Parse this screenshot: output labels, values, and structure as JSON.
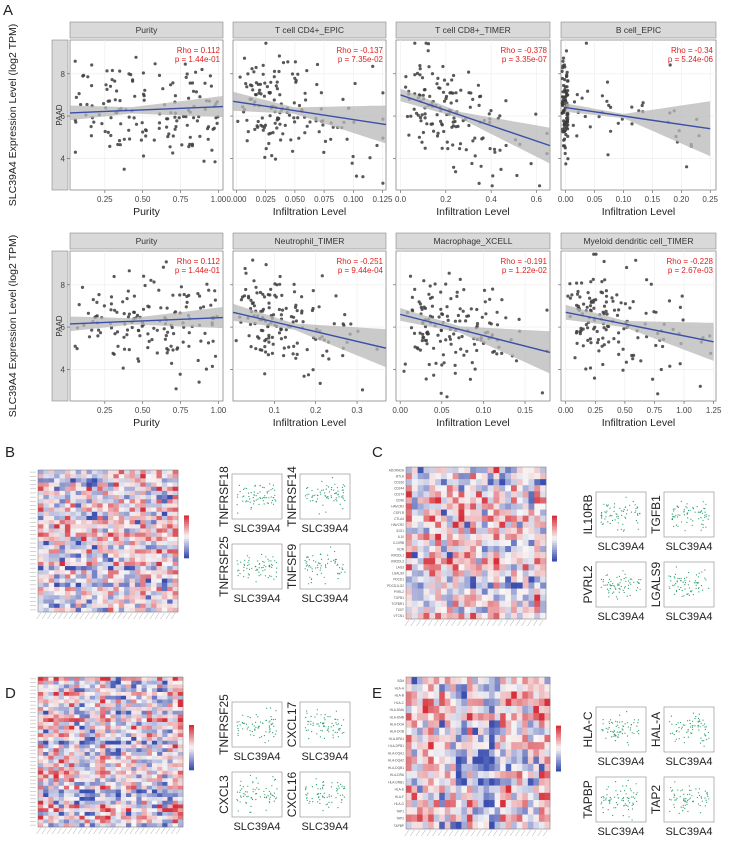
{
  "panel_labels": [
    "A",
    "B",
    "C",
    "D",
    "E"
  ],
  "chart_data": [
    {
      "type": "scatter",
      "row": 1,
      "gene": "SLC39A4",
      "ylabel": "SLC39A4 Expression Level (log2 TPM)",
      "strip_label": "PAAD",
      "yticks": [
        "4",
        "6",
        "8"
      ],
      "ylim": [
        2.5,
        9.6
      ],
      "panels": [
        {
          "title": "Purity",
          "xlabel": "Purity",
          "rho": "Rho = 0.112",
          "p": "p = 1.44e-01",
          "xticks": [
            "0.25",
            "0.50",
            "0.75",
            "1.00"
          ],
          "xtick_values": [
            0.25,
            0.5,
            0.75,
            1.0
          ],
          "xlim": [
            0.02,
            1.03
          ],
          "fit": {
            "x": [
              0.02,
              1.03
            ],
            "y": [
              6.15,
              6.45
            ]
          },
          "ci": [
            0.35,
            0.15,
            0.5
          ]
        },
        {
          "title": "T cell CD4+_EPIC",
          "xlabel": "Infiltration Level",
          "rho": "Rho = -0.137",
          "p": "p = 7.35e-02",
          "xticks": [
            "0.000",
            "0.025",
            "0.050",
            "0.075",
            "0.100",
            "0.125"
          ],
          "xtick_values": [
            0,
            0.025,
            0.05,
            0.075,
            0.1,
            0.125
          ],
          "xlim": [
            -0.003,
            0.128
          ],
          "fit": {
            "x": [
              -0.003,
              0.128
            ],
            "y": [
              6.7,
              5.6
            ]
          },
          "ci": [
            0.45,
            0.15,
            0.9
          ]
        },
        {
          "title": "T cell CD8+_TIMER",
          "xlabel": "Infiltration Level",
          "rho": "Rho = -0.378",
          "p": "p = 3.35e-07",
          "xticks": [
            "0.0",
            "0.2",
            "0.4",
            "0.6"
          ],
          "xtick_values": [
            0,
            0.2,
            0.4,
            0.6
          ],
          "xlim": [
            -0.02,
            0.66
          ],
          "fit": {
            "x": [
              0.0,
              0.66
            ],
            "y": [
              7.0,
              4.6
            ]
          },
          "ci": [
            0.3,
            0.15,
            0.85
          ]
        },
        {
          "title": "B cell_EPIC",
          "xlabel": "Infiltration Level",
          "rho": "Rho = -0.34",
          "p": "p = 5.24e-06",
          "xticks": [
            "0.00",
            "0.05",
            "0.10",
            "0.15",
            "0.20",
            "0.25"
          ],
          "xtick_values": [
            0,
            0.05,
            0.1,
            0.15,
            0.2,
            0.25
          ],
          "xlim": [
            -0.008,
            0.26
          ],
          "fit": {
            "x": [
              0.0,
              0.25
            ],
            "y": [
              6.4,
              5.4
            ]
          },
          "ci": [
            0.2,
            0.1,
            1.3
          ]
        }
      ]
    },
    {
      "type": "scatter",
      "row": 2,
      "gene": "SLC39A4",
      "ylabel": "SLC39A4 Expression Level (log2 TPM)",
      "strip_label": "PAAD",
      "yticks": [
        "4",
        "6",
        "8"
      ],
      "ylim": [
        2.5,
        9.6
      ],
      "panels": [
        {
          "title": "Purity",
          "xlabel": "Purity",
          "rho": "Rho = 0.112",
          "p": "p = 1.44e-01",
          "xticks": [
            "0.25",
            "0.50",
            "0.75",
            "1.00"
          ],
          "xtick_values": [
            0.25,
            0.5,
            0.75,
            1.0
          ],
          "xlim": [
            0.02,
            1.03
          ],
          "fit": {
            "x": [
              0.02,
              1.03
            ],
            "y": [
              6.15,
              6.45
            ]
          },
          "ci": [
            0.35,
            0.15,
            0.5
          ]
        },
        {
          "title": "Neutrophil_TIMER",
          "xlabel": "Infiltration Level",
          "rho": "Rho = -0.251",
          "p": "p = 9.44e-04",
          "xticks": [
            "0.1",
            "0.2",
            "0.3"
          ],
          "xtick_values": [
            0.1,
            0.2,
            0.3
          ],
          "xlim": [
            0.0,
            0.37
          ],
          "fit": {
            "x": [
              0.0,
              0.37
            ],
            "y": [
              6.7,
              5.0
            ]
          },
          "ci": [
            0.4,
            0.15,
            0.9
          ]
        },
        {
          "title": "Macrophage_XCELL",
          "xlabel": "Infiltration Level",
          "rho": "Rho = -0.191",
          "p": "p = 1.22e-02",
          "xticks": [
            "0.00",
            "0.05",
            "0.10",
            "0.15"
          ],
          "xtick_values": [
            0,
            0.05,
            0.1,
            0.15
          ],
          "xlim": [
            -0.005,
            0.18
          ],
          "fit": {
            "x": [
              0.0,
              0.18
            ],
            "y": [
              6.6,
              4.8
            ]
          },
          "ci": [
            0.3,
            0.15,
            1.0
          ]
        },
        {
          "title": "Myeloid dendritic cell_TIMER",
          "xlabel": "Infiltration Level",
          "rho": "Rho = -0.228",
          "p": "p = 2.67e-03",
          "xticks": [
            "0.00",
            "0.25",
            "0.50",
            "0.75",
            "1.00",
            "1.25"
          ],
          "xtick_values": [
            0,
            0.25,
            0.5,
            0.75,
            1.0,
            1.25
          ],
          "xlim": [
            -0.04,
            1.27
          ],
          "fit": {
            "x": [
              0.0,
              1.25
            ],
            "y": [
              6.7,
              5.3
            ]
          },
          "ci": [
            0.35,
            0.15,
            0.9
          ]
        }
      ]
    },
    {
      "type": "heatmap",
      "panel": "B",
      "note": "correlation heatmap (red = positive, blue = negative)",
      "mini_scatter_labels": {
        "ylabels": [
          "TNFRSF18",
          "TNFRSF14",
          "TNFRSF25",
          "TNFSF9"
        ],
        "xlabel": "SLC39A4"
      }
    },
    {
      "type": "heatmap",
      "panel": "C",
      "row_labels": [
        "ADORA2A",
        "BTLA",
        "CD160",
        "CD244",
        "CD274",
        "CD96",
        "HAVCR2",
        "CSF1R",
        "CTLA4",
        "HAVCR2",
        "IDO1",
        "IL10",
        "IL10RB",
        "KDR",
        "KIR2DL1",
        "KIR2DL3",
        "LAG3",
        "LGALS9",
        "PDCD1",
        "PDCD1LG2",
        "PVRL2",
        "TGFB1",
        "TGFBR1",
        "TIGIT",
        "VTCN1"
      ],
      "mini_scatter_labels": {
        "ylabels": [
          "IL10RB",
          "TGFB1",
          "PVRL2",
          "LGALS9"
        ],
        "xlabel": "SLC39A4"
      }
    },
    {
      "type": "heatmap",
      "panel": "D",
      "mini_scatter_labels": {
        "ylabels": [
          "TNFRSF25",
          "CXCL17",
          "CXCL3",
          "CXCL16"
        ],
        "xlabel": "SLC39A4"
      }
    },
    {
      "type": "heatmap",
      "panel": "E",
      "row_labels": [
        "B2M",
        "HLA-A",
        "HLA-B",
        "HLA-C",
        "HLA-DMA",
        "HLA-DMB",
        "HLA-DOA",
        "HLA-DOB",
        "HLA-DPA1",
        "HLA-DPB1",
        "HLA-DQA1",
        "HLA-DQA2",
        "HLA-DQB1",
        "HLA-DRA",
        "HLA-DRB1",
        "HLA-E",
        "HLA-F",
        "HLA-G",
        "TAP1",
        "TAP2",
        "TAPBP"
      ],
      "mini_scatter_labels": {
        "ylabels": [
          "HLA-C",
          "HAL-A",
          "TAPBP",
          "TAP2"
        ],
        "xlabel": "SLC39A4"
      }
    }
  ],
  "colors": {
    "point": "#3c3c3c",
    "fit": "#3a4fa8",
    "ci": "#b8b8b8",
    "stat": "#e02020",
    "strip": "#d9d9d9",
    "heat_pos": "#d7303a",
    "heat_neg": "#3b4fb0",
    "mini_point": "#2a9d6a"
  }
}
